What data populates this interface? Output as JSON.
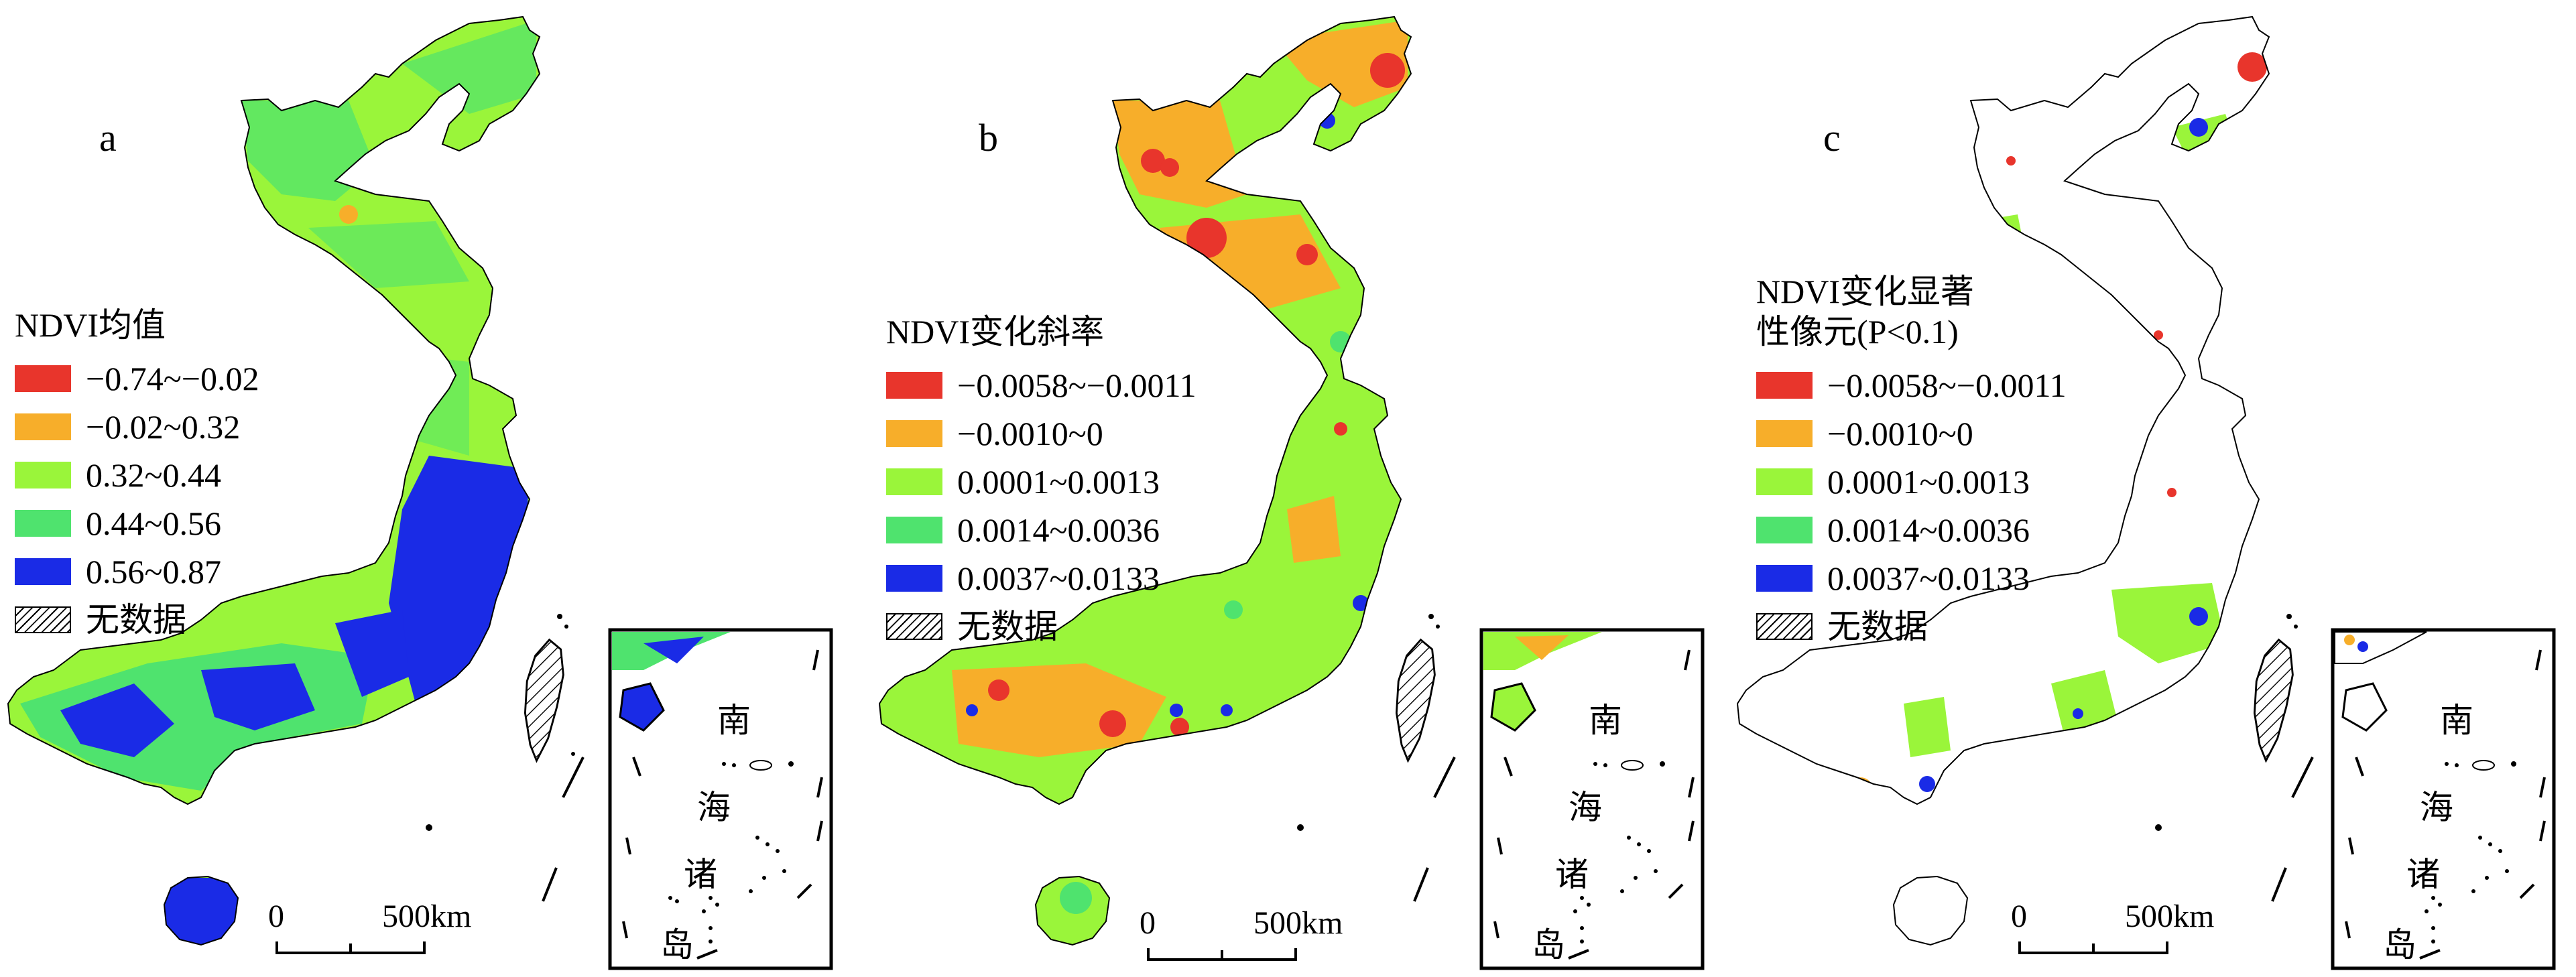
{
  "figure": {
    "colors": {
      "red": "#e8352c",
      "orange": "#f7ae2a",
      "yellow_green": "#9af53a",
      "light_green": "#4fe36e",
      "blue": "#1a2be6",
      "no_data": "hatched"
    },
    "panels": [
      {
        "letter": "a",
        "legend": {
          "title": "NDVI均值",
          "items": [
            {
              "label": "−0.74~−0.02",
              "color": "#e8352c"
            },
            {
              "label": "−0.02~0.32",
              "color": "#f7ae2a"
            },
            {
              "label": "0.32~0.44",
              "color": "#9af53a"
            },
            {
              "label": "0.44~0.56",
              "color": "#4fe36e"
            },
            {
              "label": "0.56~0.87",
              "color": "#1a2be6"
            },
            {
              "label": "无数据",
              "color": "hatched"
            }
          ]
        },
        "scale": {
          "zero": "0",
          "distance": "500km"
        },
        "inset": {
          "chars": [
            "南",
            "海",
            "诸",
            "岛"
          ]
        }
      },
      {
        "letter": "b",
        "legend": {
          "title": "NDVI变化斜率",
          "items": [
            {
              "label": "−0.0058~−0.0011",
              "color": "#e8352c"
            },
            {
              "label": "−0.0010~0",
              "color": "#f7ae2a"
            },
            {
              "label": "0.0001~0.0013",
              "color": "#9af53a"
            },
            {
              "label": "0.0014~0.0036",
              "color": "#4fe36e"
            },
            {
              "label": "0.0037~0.0133",
              "color": "#1a2be6"
            },
            {
              "label": "无数据",
              "color": "hatched"
            }
          ]
        },
        "scale": {
          "zero": "0",
          "distance": "500km"
        },
        "inset": {
          "chars": [
            "南",
            "海",
            "诸",
            "岛"
          ]
        }
      },
      {
        "letter": "c",
        "legend": {
          "title": "NDVI变化显著\n性像元(P<0.1)",
          "items": [
            {
              "label": "−0.0058~−0.0011",
              "color": "#e8352c"
            },
            {
              "label": "−0.0010~0",
              "color": "#f7ae2a"
            },
            {
              "label": "0.0001~0.0013",
              "color": "#9af53a"
            },
            {
              "label": "0.0014~0.0036",
              "color": "#4fe36e"
            },
            {
              "label": "0.0037~0.0133",
              "color": "#1a2be6"
            },
            {
              "label": "无数据",
              "color": "hatched"
            }
          ]
        },
        "scale": {
          "zero": "0",
          "distance": "500km"
        },
        "inset": {
          "chars": [
            "南",
            "海",
            "诸",
            "岛"
          ]
        }
      }
    ]
  }
}
